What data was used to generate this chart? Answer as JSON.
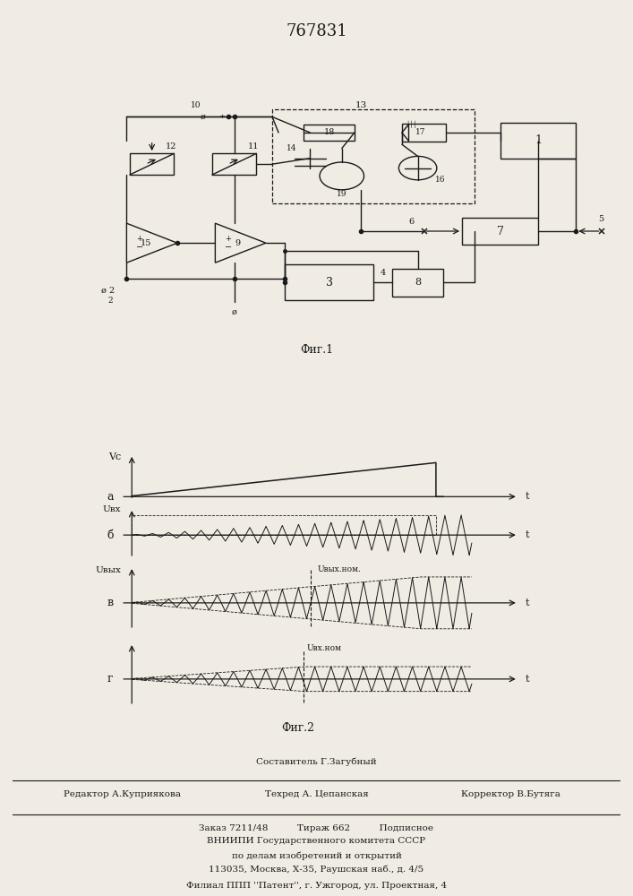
{
  "title": "767831",
  "fig1_caption": "Фиг.1",
  "fig2_caption": "Фиг.2",
  "background_color": "#f0ece4",
  "line_color": "#1a1a1a",
  "label_a": "а",
  "label_b": "б",
  "label_v": "в",
  "label_g": "г",
  "vc_label": "Vc",
  "vbx_label": "Uвх",
  "vwix_label": "Uвых",
  "vwix_nom_label": "Uвых.ном.",
  "vbx_nom_label": "Uвх.ном",
  "t_label": "t",
  "footer_line1": "Составитель Г.Загубный",
  "footer_line2_left": "Редактор А.Куприякова",
  "footer_line2_mid": "Техред А. Цепанская",
  "footer_line2_right": "Корректор В.Бутяга",
  "footer_line3": "Заказ 7211/48          Тираж 662          Подписное",
  "footer_line4": "ВНИИПИ Государственного комитета СССР",
  "footer_line5": "по делам изобретений и открытий",
  "footer_line6": "113035, Москва, Х-35, Раушская наб., д. 4/5",
  "footer_line7": "Филиал ППП ''Патент'', г. Ужгород, ул. Проектная, 4"
}
